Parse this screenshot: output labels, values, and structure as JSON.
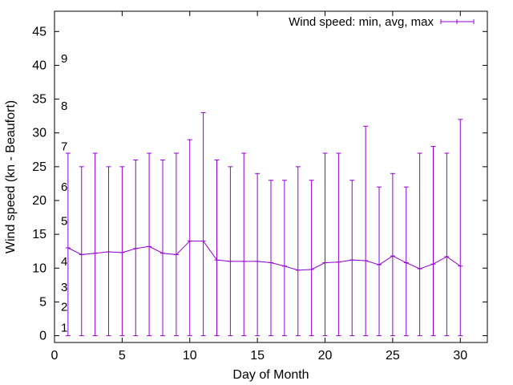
{
  "chart_data": {
    "type": "line",
    "title": "",
    "xlabel": "Day of Month",
    "ylabel": "Wind speed (kn - Beaufort)",
    "xlim": [
      0,
      32
    ],
    "ylim": [
      -1,
      48
    ],
    "xticks": [
      0,
      5,
      10,
      15,
      20,
      25,
      30
    ],
    "yticks": [
      0,
      5,
      10,
      15,
      20,
      25,
      30,
      35,
      40,
      45
    ],
    "grid": false,
    "legend_position": "top-right",
    "colors": {
      "series": "#9400d3"
    },
    "series": [
      {
        "name": "Wind speed: min, avg, max",
        "style": "errorbars-with-line",
        "x": [
          1,
          2,
          3,
          4,
          5,
          6,
          7,
          8,
          9,
          10,
          11,
          12,
          13,
          14,
          15,
          16,
          17,
          18,
          19,
          20,
          21,
          22,
          23,
          24,
          25,
          26,
          27,
          28,
          29,
          30
        ],
        "min": [
          0,
          0,
          0,
          0,
          0,
          0,
          0,
          0,
          0,
          0,
          0,
          0,
          0,
          0,
          0,
          0,
          0,
          0,
          0,
          0,
          0,
          0,
          0,
          0,
          0,
          0,
          0,
          0,
          0,
          0
        ],
        "avg": [
          13,
          12,
          12.2,
          12.4,
          12.3,
          12.9,
          13.2,
          12.2,
          12,
          14,
          14,
          11.2,
          11,
          11,
          11,
          10.8,
          10.3,
          9.7,
          9.8,
          10.8,
          10.9,
          11.2,
          11.1,
          10.5,
          11.8,
          10.8,
          9.9,
          10.6,
          11.7,
          10.3
        ],
        "max": [
          27,
          25,
          27,
          25,
          25,
          26,
          27,
          26,
          27,
          29,
          33,
          26,
          25,
          27,
          24,
          23,
          23,
          25,
          23,
          27,
          27,
          23,
          31,
          22,
          24,
          22,
          27,
          28,
          27,
          32
        ]
      }
    ],
    "beaufort_labels": [
      {
        "label": "1",
        "value": 1.2
      },
      {
        "label": "2",
        "value": 4.3
      },
      {
        "label": "3",
        "value": 7.2
      },
      {
        "label": "4",
        "value": 11.0
      },
      {
        "label": "5",
        "value": 17.0
      },
      {
        "label": "6",
        "value": 22.0
      },
      {
        "label": "7",
        "value": 28.0
      },
      {
        "label": "8",
        "value": 34.0
      },
      {
        "label": "9",
        "value": 41.0
      }
    ]
  }
}
